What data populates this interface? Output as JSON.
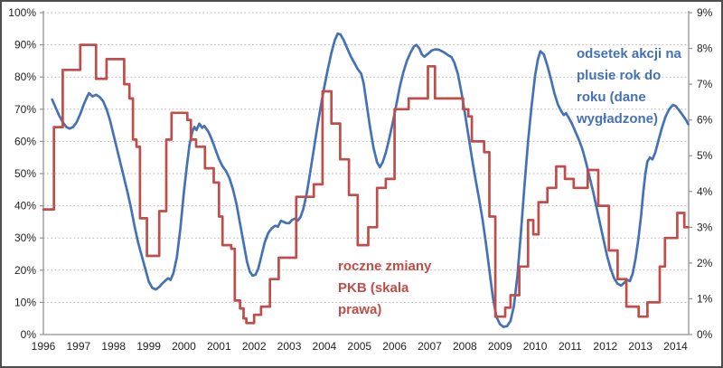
{
  "chart_data": {
    "type": "line",
    "title": "",
    "x_axis": {
      "tick_labels": [
        "1996",
        "1997",
        "1998",
        "1999",
        "2000",
        "2001",
        "2002",
        "2003",
        "2004",
        "2005",
        "2006",
        "2007",
        "2008",
        "2009",
        "2010",
        "2011",
        "2012",
        "2013",
        "2014"
      ],
      "min": 1996,
      "max": 2014.36
    },
    "y_left_axis": {
      "tick_labels": [
        "0%",
        "10%",
        "20%",
        "30%",
        "40%",
        "50%",
        "60%",
        "70%",
        "80%",
        "90%",
        "100%"
      ],
      "min": 0,
      "max": 100,
      "step": 10
    },
    "y_right_axis": {
      "tick_labels": [
        "0%",
        "1%",
        "2%",
        "3%",
        "4%",
        "5%",
        "6%",
        "7%",
        "8%",
        "9%"
      ],
      "min": 0,
      "max": 9,
      "step": 1
    },
    "grid": "horizontal-dotted",
    "colors": {
      "blue": "#4472b4",
      "red": "#bf4d49",
      "gridline": "#b3b3b3",
      "axis": "#919191",
      "tick_text": "#1f1f1f"
    },
    "series": [
      {
        "name": "odsetek akcji na plusie rok do roku (dane wygładzone)",
        "axis": "left",
        "style": "smooth",
        "color": "#4472b4",
        "points": [
          [
            1996.25,
            73
          ],
          [
            1996.35,
            70.5
          ],
          [
            1996.45,
            68
          ],
          [
            1996.55,
            66
          ],
          [
            1996.65,
            64.5
          ],
          [
            1996.75,
            64
          ],
          [
            1996.85,
            64.5
          ],
          [
            1996.95,
            66
          ],
          [
            1997.05,
            68.5
          ],
          [
            1997.15,
            71.5
          ],
          [
            1997.25,
            74
          ],
          [
            1997.3,
            75
          ],
          [
            1997.4,
            74
          ],
          [
            1997.5,
            74.5
          ],
          [
            1997.6,
            73.8
          ],
          [
            1997.7,
            72.5
          ],
          [
            1997.8,
            70
          ],
          [
            1997.9,
            66.5
          ],
          [
            1998.0,
            62
          ],
          [
            1998.1,
            57.5
          ],
          [
            1998.2,
            53
          ],
          [
            1998.3,
            48.5
          ],
          [
            1998.4,
            44
          ],
          [
            1998.5,
            39
          ],
          [
            1998.6,
            33.5
          ],
          [
            1998.7,
            28.5
          ],
          [
            1998.8,
            24.5
          ],
          [
            1998.9,
            20.5
          ],
          [
            1999.0,
            16.5
          ],
          [
            1999.1,
            14.5
          ],
          [
            1999.2,
            14
          ],
          [
            1999.3,
            14.8
          ],
          [
            1999.4,
            16
          ],
          [
            1999.5,
            17
          ],
          [
            1999.55,
            17.5
          ],
          [
            1999.62,
            17
          ],
          [
            1999.7,
            19
          ],
          [
            1999.8,
            24
          ],
          [
            1999.9,
            33
          ],
          [
            2000.0,
            44
          ],
          [
            2000.08,
            52
          ],
          [
            2000.16,
            59
          ],
          [
            2000.24,
            63
          ],
          [
            2000.3,
            64.5
          ],
          [
            2000.36,
            63.5
          ],
          [
            2000.44,
            65.5
          ],
          [
            2000.52,
            64.2
          ],
          [
            2000.58,
            64.8
          ],
          [
            2000.7,
            63
          ],
          [
            2000.8,
            60.5
          ],
          [
            2000.9,
            57.5
          ],
          [
            2001.0,
            54.5
          ],
          [
            2001.1,
            52.3
          ],
          [
            2001.2,
            50.8
          ],
          [
            2001.3,
            48.5
          ],
          [
            2001.4,
            45
          ],
          [
            2001.5,
            40.5
          ],
          [
            2001.6,
            34.5
          ],
          [
            2001.7,
            28.5
          ],
          [
            2001.8,
            22.5
          ],
          [
            2001.88,
            19.5
          ],
          [
            2001.96,
            18.3
          ],
          [
            2002.04,
            18.6
          ],
          [
            2002.12,
            20.5
          ],
          [
            2002.2,
            24
          ],
          [
            2002.3,
            28.5
          ],
          [
            2002.4,
            31.5
          ],
          [
            2002.5,
            33
          ],
          [
            2002.6,
            33.8
          ],
          [
            2002.68,
            33.5
          ],
          [
            2002.76,
            35.3
          ],
          [
            2002.84,
            35
          ],
          [
            2002.92,
            34.6
          ],
          [
            2003.0,
            34.6
          ],
          [
            2003.08,
            35.6
          ],
          [
            2003.16,
            36
          ],
          [
            2003.24,
            35.4
          ],
          [
            2003.32,
            36.5
          ],
          [
            2003.4,
            39
          ],
          [
            2003.5,
            44
          ],
          [
            2003.6,
            50.5
          ],
          [
            2003.7,
            57.5
          ],
          [
            2003.8,
            64.5
          ],
          [
            2003.9,
            71
          ],
          [
            2004.0,
            77
          ],
          [
            2004.1,
            82.5
          ],
          [
            2004.2,
            87.5
          ],
          [
            2004.3,
            91.5
          ],
          [
            2004.38,
            93.5
          ],
          [
            2004.46,
            93.2
          ],
          [
            2004.55,
            91.5
          ],
          [
            2004.65,
            89
          ],
          [
            2004.75,
            86.5
          ],
          [
            2004.85,
            84.5
          ],
          [
            2004.95,
            82.5
          ],
          [
            2005.05,
            81
          ],
          [
            2005.12,
            78
          ],
          [
            2005.2,
            72
          ],
          [
            2005.3,
            64.5
          ],
          [
            2005.4,
            58
          ],
          [
            2005.5,
            53.5
          ],
          [
            2005.58,
            52
          ],
          [
            2005.66,
            53.5
          ],
          [
            2005.75,
            56.5
          ],
          [
            2005.85,
            61
          ],
          [
            2005.95,
            66
          ],
          [
            2006.05,
            71.5
          ],
          [
            2006.15,
            77
          ],
          [
            2006.25,
            81.5
          ],
          [
            2006.35,
            85
          ],
          [
            2006.45,
            87.5
          ],
          [
            2006.55,
            89.5
          ],
          [
            2006.62,
            90
          ],
          [
            2006.7,
            89
          ],
          [
            2006.78,
            87
          ],
          [
            2006.85,
            86.3
          ],
          [
            2006.95,
            87.2
          ],
          [
            2007.05,
            88.2
          ],
          [
            2007.15,
            88.6
          ],
          [
            2007.25,
            88.5
          ],
          [
            2007.35,
            88
          ],
          [
            2007.45,
            87.4
          ],
          [
            2007.55,
            86.6
          ],
          [
            2007.62,
            86.2
          ],
          [
            2007.7,
            84.5
          ],
          [
            2007.8,
            81
          ],
          [
            2007.9,
            75.5
          ],
          [
            2008.0,
            69
          ],
          [
            2008.1,
            62
          ],
          [
            2008.2,
            55
          ],
          [
            2008.3,
            48.5
          ],
          [
            2008.4,
            42.5
          ],
          [
            2008.5,
            36
          ],
          [
            2008.6,
            28.5
          ],
          [
            2008.7,
            20
          ],
          [
            2008.8,
            11.5
          ],
          [
            2008.9,
            5.5
          ],
          [
            2009.0,
            3.2
          ],
          [
            2009.1,
            2.4
          ],
          [
            2009.2,
            2.6
          ],
          [
            2009.3,
            4.2
          ],
          [
            2009.4,
            9
          ],
          [
            2009.5,
            18.5
          ],
          [
            2009.6,
            32
          ],
          [
            2009.7,
            46.5
          ],
          [
            2009.8,
            60
          ],
          [
            2009.9,
            71
          ],
          [
            2010.0,
            80.5
          ],
          [
            2010.08,
            85.5
          ],
          [
            2010.15,
            88
          ],
          [
            2010.25,
            87
          ],
          [
            2010.35,
            83.5
          ],
          [
            2010.45,
            79.5
          ],
          [
            2010.55,
            75
          ],
          [
            2010.65,
            71.5
          ],
          [
            2010.75,
            69.3
          ],
          [
            2010.82,
            68.2
          ],
          [
            2010.88,
            68.8
          ],
          [
            2010.95,
            67.5
          ],
          [
            2011.05,
            65.5
          ],
          [
            2011.15,
            63
          ],
          [
            2011.25,
            60.5
          ],
          [
            2011.35,
            57.5
          ],
          [
            2011.45,
            53.5
          ],
          [
            2011.55,
            49
          ],
          [
            2011.65,
            44.5
          ],
          [
            2011.75,
            39.5
          ],
          [
            2011.85,
            34.5
          ],
          [
            2011.95,
            29.5
          ],
          [
            2012.05,
            24.5
          ],
          [
            2012.15,
            20.5
          ],
          [
            2012.25,
            17.5
          ],
          [
            2012.35,
            15.8
          ],
          [
            2012.45,
            15.2
          ],
          [
            2012.55,
            16.2
          ],
          [
            2012.62,
            17
          ],
          [
            2012.7,
            16.6
          ],
          [
            2012.78,
            19
          ],
          [
            2012.86,
            23.5
          ],
          [
            2012.94,
            29.5
          ],
          [
            2013.02,
            37
          ],
          [
            2013.08,
            44
          ],
          [
            2013.14,
            50
          ],
          [
            2013.2,
            53.8
          ],
          [
            2013.27,
            55
          ],
          [
            2013.34,
            54.4
          ],
          [
            2013.42,
            56.5
          ],
          [
            2013.52,
            60.5
          ],
          [
            2013.62,
            64.5
          ],
          [
            2013.72,
            67.8
          ],
          [
            2013.82,
            70
          ],
          [
            2013.92,
            71.3
          ],
          [
            2014.0,
            71
          ],
          [
            2014.1,
            69.7
          ],
          [
            2014.2,
            68.2
          ],
          [
            2014.3,
            66.6
          ],
          [
            2014.36,
            65.4
          ]
        ]
      },
      {
        "name": "roczne zmiany PKB (skala prawa)",
        "axis": "right",
        "style": "step",
        "color": "#bf4d49",
        "end_x": 2014.36,
        "points": [
          [
            1996.0,
            3.5
          ],
          [
            1996.3,
            5.8
          ],
          [
            1996.55,
            7.4
          ],
          [
            1997.05,
            8.1
          ],
          [
            1997.5,
            7.15
          ],
          [
            1997.8,
            7.7
          ],
          [
            1998.3,
            7.0
          ],
          [
            1998.45,
            6.6
          ],
          [
            1998.55,
            5.45
          ],
          [
            1998.65,
            5.25
          ],
          [
            1998.75,
            3.25
          ],
          [
            1998.95,
            2.2
          ],
          [
            1999.3,
            3.45
          ],
          [
            1999.5,
            5.45
          ],
          [
            1999.65,
            6.2
          ],
          [
            2000.1,
            6.0
          ],
          [
            2000.2,
            5.45
          ],
          [
            2000.35,
            5.25
          ],
          [
            2000.6,
            4.65
          ],
          [
            2000.85,
            4.25
          ],
          [
            2001.0,
            3.3
          ],
          [
            2001.1,
            2.5
          ],
          [
            2001.35,
            2.4
          ],
          [
            2001.45,
            0.95
          ],
          [
            2001.6,
            0.73
          ],
          [
            2001.7,
            0.45
          ],
          [
            2001.78,
            0.32
          ],
          [
            2002.0,
            0.55
          ],
          [
            2002.2,
            0.78
          ],
          [
            2002.45,
            1.55
          ],
          [
            2002.7,
            2.15
          ],
          [
            2003.2,
            3.85
          ],
          [
            2003.7,
            4.2
          ],
          [
            2003.95,
            6.8
          ],
          [
            2004.2,
            5.9
          ],
          [
            2004.45,
            4.9
          ],
          [
            2004.7,
            3.9
          ],
          [
            2004.95,
            2.5
          ],
          [
            2005.25,
            3.0
          ],
          [
            2005.5,
            4.1
          ],
          [
            2005.75,
            4.35
          ],
          [
            2006.0,
            6.3
          ],
          [
            2006.4,
            6.6
          ],
          [
            2006.95,
            7.5
          ],
          [
            2007.15,
            6.6
          ],
          [
            2007.95,
            6.3
          ],
          [
            2008.1,
            6.1
          ],
          [
            2008.2,
            5.4
          ],
          [
            2008.55,
            5.1
          ],
          [
            2008.7,
            3.3
          ],
          [
            2008.87,
            0.5
          ],
          [
            2009.15,
            0.75
          ],
          [
            2009.3,
            1.1
          ],
          [
            2009.55,
            1.9
          ],
          [
            2009.8,
            3.2
          ],
          [
            2009.95,
            2.8
          ],
          [
            2010.1,
            3.7
          ],
          [
            2010.35,
            4.1
          ],
          [
            2010.6,
            4.7
          ],
          [
            2010.85,
            4.35
          ],
          [
            2011.1,
            4.1
          ],
          [
            2011.5,
            4.6
          ],
          [
            2011.8,
            3.6
          ],
          [
            2012.1,
            2.35
          ],
          [
            2012.35,
            1.55
          ],
          [
            2012.6,
            0.78
          ],
          [
            2012.95,
            0.5
          ],
          [
            2013.2,
            0.9
          ],
          [
            2013.55,
            1.9
          ],
          [
            2013.7,
            2.7
          ],
          [
            2014.05,
            3.4
          ],
          [
            2014.25,
            3.0
          ]
        ]
      }
    ],
    "annotations": [
      {
        "id": "stocks-label",
        "text": "odsetek akcji na\nplusie rok do\nroku (dane\nwygładzone)",
        "color": "#4472b4"
      },
      {
        "id": "gdp-label",
        "text": "roczne zmiany\nPKB (skala\nprawa)",
        "color": "#bf4d49"
      }
    ]
  }
}
